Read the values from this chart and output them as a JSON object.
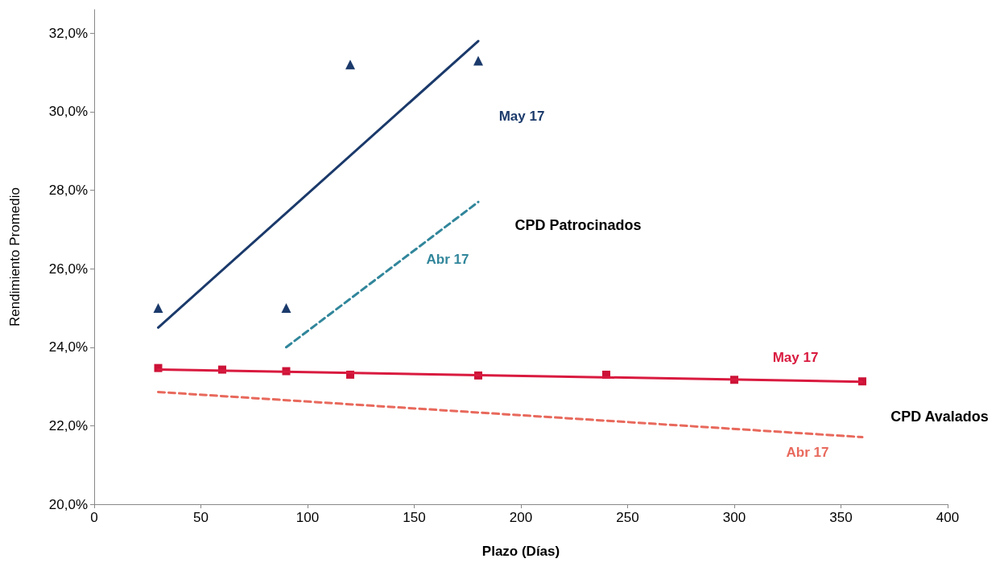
{
  "chart_data": {
    "type": "line",
    "xlabel": "Plazo (Días)",
    "ylabel": "Rendimiento Promedio",
    "xlim": [
      0,
      400
    ],
    "xticks": [
      0,
      50,
      100,
      150,
      200,
      250,
      300,
      350,
      400
    ],
    "ylim": [
      20,
      32.6
    ],
    "yticks": [
      {
        "value": 20,
        "label": "20,0%"
      },
      {
        "value": 22,
        "label": "22,0%"
      },
      {
        "value": 24,
        "label": "24,0%"
      },
      {
        "value": 26,
        "label": "26,0%"
      },
      {
        "value": 28,
        "label": "28,0%"
      },
      {
        "value": 30,
        "label": "30,0%"
      },
      {
        "value": 32,
        "label": "32,0%"
      }
    ],
    "grid": false,
    "series": [
      {
        "type": "scatter",
        "color": "#1b3a6b",
        "marker": "triangle",
        "x": [
          30,
          90,
          120,
          180
        ],
        "values": [
          25.0,
          25.0,
          31.2,
          31.3
        ]
      },
      {
        "name": "May 17",
        "color": "#1b3a6b",
        "marker": "none",
        "line_style": "solid",
        "x": [
          30,
          180
        ],
        "values": [
          24.5,
          31.8
        ]
      },
      {
        "name": "Abr 17",
        "color": "#31869b",
        "marker": "none",
        "line_style": "dashed",
        "x": [
          90,
          180
        ],
        "values": [
          24.0,
          27.7
        ]
      },
      {
        "type": "scatter",
        "color": "#cc1237",
        "marker": "square",
        "x": [
          30,
          60,
          90,
          120,
          180,
          240,
          300,
          360
        ],
        "values": [
          23.47,
          23.43,
          23.39,
          23.3,
          23.28,
          23.3,
          23.17,
          23.13
        ]
      },
      {
        "name": "May 17",
        "color": "#d91a3f",
        "marker": "none",
        "line_style": "solid",
        "x": [
          30,
          360
        ],
        "values": [
          23.43,
          23.12
        ]
      },
      {
        "name": "Abr 17",
        "color": "#e8695c",
        "marker": "none",
        "line_style": "dashed",
        "x": [
          30,
          360
        ],
        "values": [
          22.86,
          21.71
        ]
      }
    ],
    "annotations": [
      "CPD Patrocinados",
      "CPD Avalados"
    ]
  }
}
